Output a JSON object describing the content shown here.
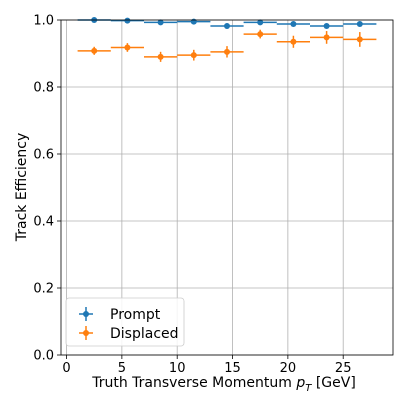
{
  "chart_data": {
    "type": "scatter",
    "xlabel": "Truth Transverse Momentum",
    "xlabel_symbol": "p",
    "xlabel_subscript": "T",
    "xlabel_unit": "[GeV]",
    "ylabel": "Track Efficiency",
    "xlim": [
      -0.5,
      29.5
    ],
    "ylim": [
      0.0,
      1.0
    ],
    "grid": true,
    "legend_position": "lower-left",
    "x_ticks": [
      0,
      5,
      10,
      15,
      20,
      25
    ],
    "x_tick_labels": [
      "0",
      "5",
      "10",
      "15",
      "20",
      "25"
    ],
    "y_ticks": [
      0.0,
      0.2,
      0.4,
      0.6,
      0.8,
      1.0
    ],
    "y_tick_labels": [
      "0.0",
      "0.2",
      "0.4",
      "0.6",
      "0.8",
      "1.0"
    ],
    "series": [
      {
        "name": "Prompt",
        "color": "#1f77b4",
        "x": [
          2.5,
          5.5,
          8.5,
          11.5,
          14.5,
          17.5,
          20.5,
          23.5,
          26.5
        ],
        "x_err": [
          1.5,
          1.5,
          1.5,
          1.5,
          1.5,
          1.5,
          1.5,
          1.5,
          1.5
        ],
        "y": [
          1.0,
          0.998,
          0.993,
          0.995,
          0.982,
          0.993,
          0.988,
          0.982,
          0.988
        ],
        "y_err": [
          0.003,
          0.003,
          0.005,
          0.005,
          0.008,
          0.005,
          0.006,
          0.007,
          0.007
        ]
      },
      {
        "name": "Displaced",
        "color": "#ff7f0e",
        "x": [
          2.5,
          5.5,
          8.5,
          11.5,
          14.5,
          17.5,
          20.5,
          23.5,
          26.5
        ],
        "x_err": [
          1.5,
          1.5,
          1.5,
          1.5,
          1.5,
          1.5,
          1.5,
          1.5,
          1.5
        ],
        "y": [
          0.908,
          0.918,
          0.89,
          0.895,
          0.905,
          0.958,
          0.935,
          0.948,
          0.942
        ],
        "y_err": [
          0.012,
          0.013,
          0.015,
          0.016,
          0.017,
          0.013,
          0.018,
          0.019,
          0.022
        ]
      }
    ]
  }
}
